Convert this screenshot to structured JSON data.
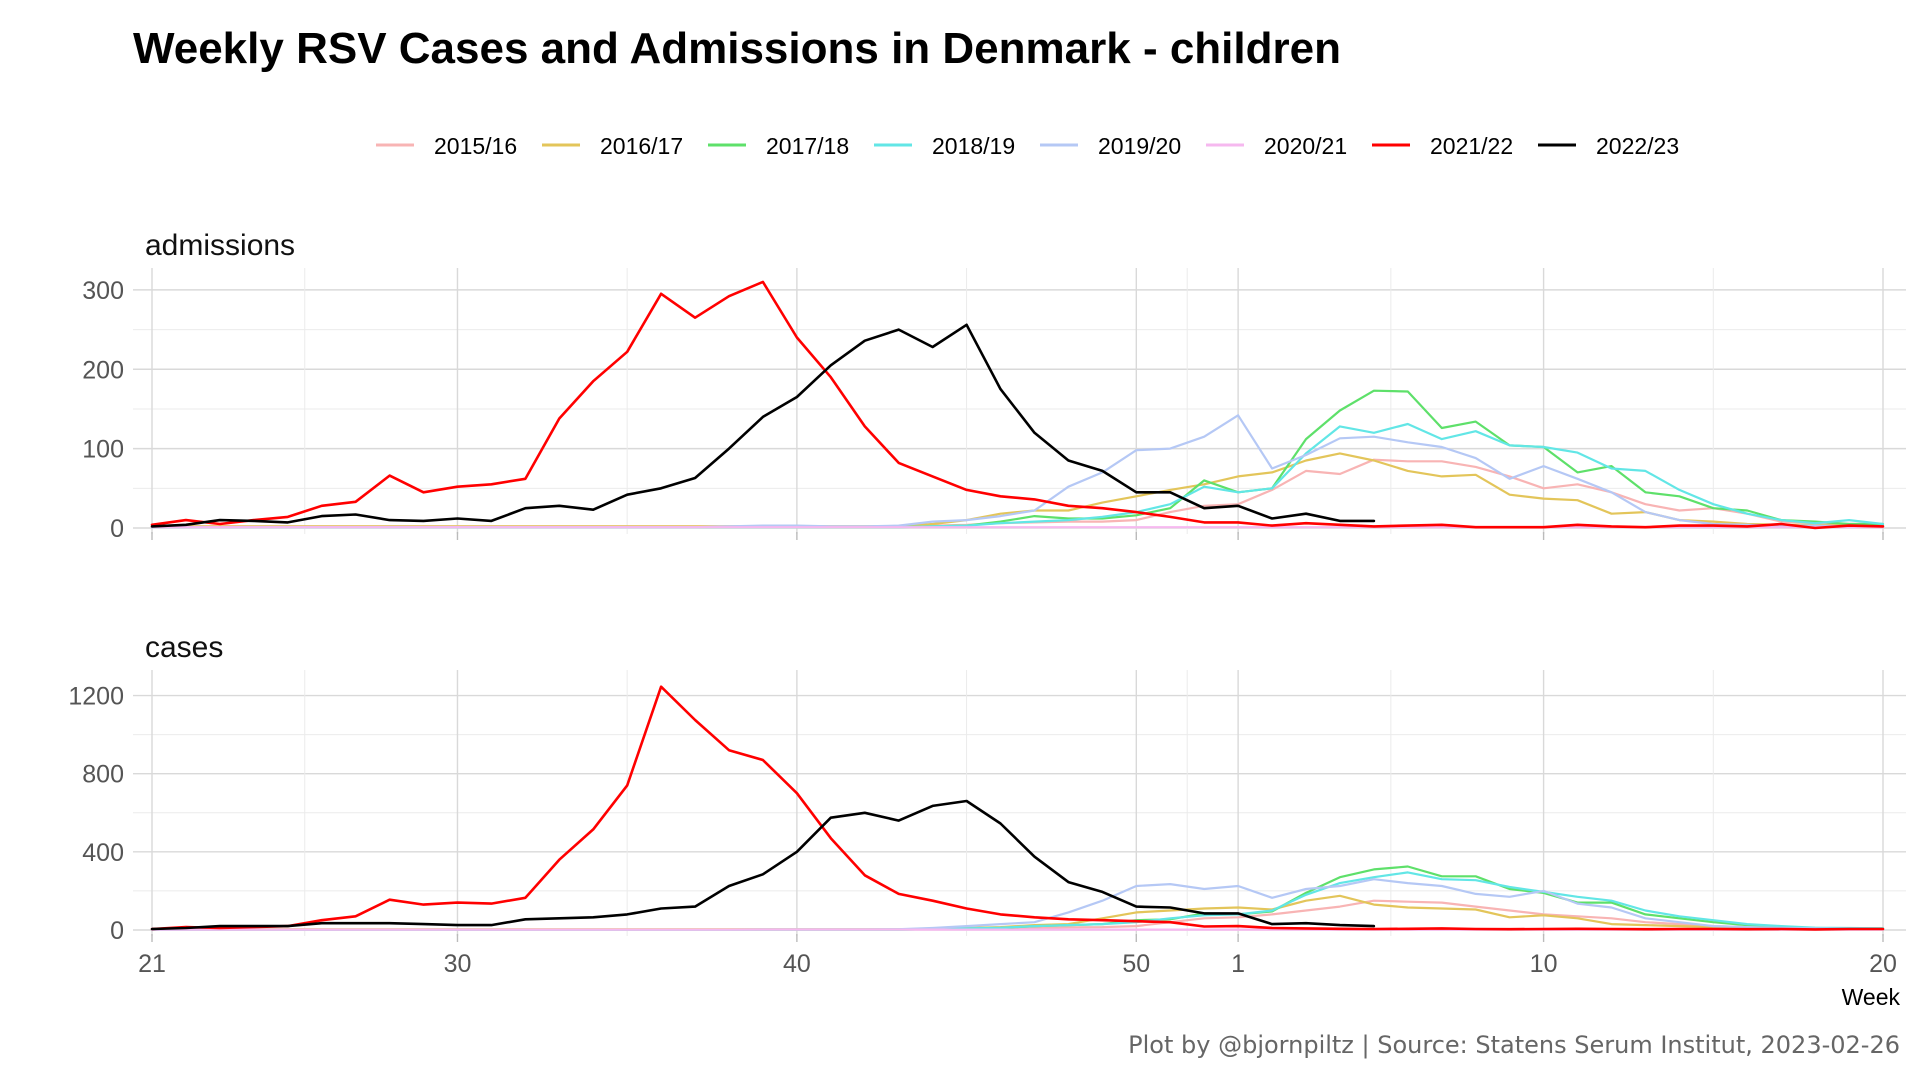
{
  "chart_data": {
    "type": "line",
    "title": "Weekly RSV Cases and Admissions in Denmark - children",
    "xlabel": "Week",
    "caption": "Plot by @bjornpiltz | Source: Statens Serum Institut, 2023-02-26",
    "legend_position": "top",
    "grid": true,
    "weeks": [
      21,
      22,
      23,
      24,
      25,
      26,
      27,
      28,
      29,
      30,
      31,
      32,
      33,
      34,
      35,
      36,
      37,
      38,
      39,
      40,
      41,
      42,
      43,
      44,
      45,
      46,
      47,
      48,
      49,
      50,
      51,
      52,
      1,
      2,
      3,
      4,
      5,
      6,
      7,
      8,
      9,
      10,
      11,
      12,
      13,
      14,
      15,
      16,
      17,
      18,
      19,
      20
    ],
    "x_ticks": [
      {
        "label": "21",
        "index": 0
      },
      {
        "label": "30",
        "index": 9
      },
      {
        "label": "40",
        "index": 19
      },
      {
        "label": "50",
        "index": 29
      },
      {
        "label": "1",
        "index": 32
      },
      {
        "label": "10",
        "index": 41
      },
      {
        "label": "20",
        "index": 51
      }
    ],
    "colors": {
      "2015/16": "#f8b4b4",
      "2016/17": "#e3c55a",
      "2017/18": "#5ee06a",
      "2018/19": "#62e6e6",
      "2019/20": "#b5c8f5",
      "2020/21": "#f6b8ef",
      "2021/22": "#ff0000",
      "2022/23": "#000000"
    },
    "legend": [
      "2015/16",
      "2016/17",
      "2017/18",
      "2018/19",
      "2019/20",
      "2020/21",
      "2021/22",
      "2022/23"
    ],
    "panels": [
      {
        "label": "admissions",
        "ylim": [
          0,
          320
        ],
        "yticks": [
          0,
          100,
          200,
          300
        ],
        "series": [
          {
            "name": "2015/16",
            "values": [
              2,
              2,
              2,
              2,
              2,
              2,
              2,
              2,
              2,
              2,
              2,
              2,
              2,
              2,
              2,
              2,
              2,
              2,
              2,
              2,
              2,
              2,
              2,
              3,
              4,
              6,
              7,
              8,
              8,
              10,
              20,
              28,
              30,
              48,
              72,
              68,
              86,
              84,
              84,
              77,
              65,
              50,
              55,
              45,
              30,
              22,
              25,
              18,
              8,
              6,
              5,
              5
            ]
          },
          {
            "name": "2016/17",
            "values": [
              2,
              2,
              2,
              2,
              2,
              2,
              2,
              2,
              2,
              2,
              2,
              2,
              2,
              2,
              2,
              2,
              2,
              2,
              2,
              2,
              2,
              2,
              2,
              5,
              10,
              18,
              22,
              22,
              32,
              40,
              48,
              55,
              65,
              70,
              85,
              94,
              85,
              72,
              65,
              67,
              42,
              37,
              35,
              18,
              20,
              10,
              8,
              5,
              4,
              4,
              3,
              3
            ]
          },
          {
            "name": "2017/18",
            "values": [
              1,
              1,
              1,
              1,
              1,
              1,
              1,
              1,
              1,
              1,
              1,
              1,
              1,
              1,
              1,
              1,
              1,
              1,
              1,
              1,
              1,
              1,
              1,
              2,
              3,
              8,
              15,
              12,
              12,
              16,
              25,
              60,
              45,
              50,
              112,
              148,
              173,
              172,
              126,
              134,
              104,
              102,
              70,
              78,
              45,
              40,
              25,
              22,
              10,
              8,
              5,
              5
            ]
          },
          {
            "name": "2018/19",
            "values": [
              1,
              1,
              1,
              1,
              1,
              1,
              1,
              1,
              1,
              1,
              1,
              1,
              1,
              1,
              1,
              1,
              1,
              1,
              1,
              1,
              1,
              1,
              1,
              2,
              3,
              6,
              8,
              10,
              14,
              20,
              30,
              52,
              45,
              50,
              94,
              128,
              120,
              131,
              112,
              122,
              104,
              102,
              95,
              75,
              72,
              48,
              30,
              18,
              10,
              6,
              10,
              5
            ]
          },
          {
            "name": "2019/20",
            "values": [
              1,
              1,
              1,
              1,
              1,
              1,
              1,
              1,
              1,
              1,
              1,
              1,
              1,
              1,
              1,
              1,
              1,
              2,
              3,
              3,
              2,
              2,
              3,
              8,
              10,
              15,
              22,
              52,
              70,
              98,
              100,
              115,
              142,
              75,
              92,
              113,
              115,
              108,
              102,
              88,
              62,
              78,
              62,
              45,
              20,
              10,
              5,
              4,
              3,
              3,
              2,
              2
            ]
          },
          {
            "name": "2020/21",
            "values": [
              1,
              1,
              1,
              1,
              1,
              1,
              1,
              1,
              1,
              1,
              1,
              1,
              1,
              1,
              1,
              1,
              1,
              1,
              1,
              1,
              1,
              1,
              1,
              1,
              1,
              1,
              1,
              1,
              1,
              1,
              1,
              1,
              1,
              1,
              1,
              1,
              1,
              1,
              1,
              1,
              1,
              1,
              1,
              1,
              1,
              1,
              1,
              1,
              1,
              1,
              1,
              1
            ]
          },
          {
            "name": "2021/22",
            "values": [
              4,
              10,
              5,
              10,
              14,
              28,
              33,
              66,
              45,
              52,
              55,
              62,
              138,
              185,
              222,
              295,
              265,
              292,
              310,
              240,
              190,
              128,
              82,
              65,
              48,
              40,
              36,
              28,
              25,
              20,
              14,
              7,
              7,
              3,
              6,
              4,
              2,
              3,
              4,
              1,
              1,
              1,
              4,
              2,
              1,
              3,
              3,
              2,
              5,
              0,
              3,
              2
            ]
          },
          {
            "name": "2022/23",
            "values": [
              2,
              4,
              10,
              9,
              7,
              15,
              17,
              10,
              9,
              12,
              9,
              25,
              28,
              23,
              42,
              50,
              63,
              100,
              140,
              165,
              205,
              236,
              250,
              228,
              256,
              175,
              120,
              85,
              72,
              45,
              45,
              25,
              28,
              12,
              18,
              9,
              9
            ]
          }
        ]
      },
      {
        "label": "cases",
        "ylim": [
          0,
          1300
        ],
        "yticks": [
          0,
          400,
          800,
          1200
        ],
        "series": [
          {
            "name": "2015/16",
            "values": [
              3,
              3,
              3,
              3,
              3,
              3,
              3,
              3,
              3,
              3,
              3,
              3,
              3,
              3,
              3,
              3,
              3,
              3,
              3,
              3,
              3,
              3,
              3,
              5,
              8,
              10,
              12,
              14,
              15,
              20,
              40,
              60,
              65,
              80,
              100,
              120,
              150,
              145,
              140,
              120,
              100,
              80,
              70,
              60,
              40,
              30,
              20,
              15,
              10,
              8,
              6,
              5
            ]
          },
          {
            "name": "2016/17",
            "values": [
              3,
              3,
              3,
              3,
              3,
              3,
              3,
              3,
              3,
              3,
              3,
              3,
              3,
              3,
              3,
              3,
              3,
              3,
              3,
              3,
              3,
              3,
              3,
              5,
              10,
              15,
              25,
              30,
              60,
              90,
              100,
              110,
              115,
              105,
              150,
              175,
              130,
              115,
              110,
              105,
              65,
              75,
              60,
              30,
              25,
              20,
              15,
              12,
              10,
              8,
              6,
              5
            ]
          },
          {
            "name": "2017/18",
            "values": [
              2,
              2,
              2,
              2,
              2,
              2,
              2,
              2,
              2,
              2,
              2,
              2,
              2,
              2,
              2,
              2,
              2,
              2,
              2,
              2,
              2,
              2,
              2,
              4,
              6,
              10,
              20,
              25,
              30,
              50,
              55,
              85,
              80,
              95,
              190,
              270,
              310,
              325,
              275,
              275,
              210,
              190,
              140,
              140,
              80,
              60,
              40,
              25,
              15,
              10,
              8,
              8
            ]
          },
          {
            "name": "2018/19",
            "values": [
              2,
              2,
              2,
              2,
              2,
              2,
              2,
              2,
              2,
              2,
              2,
              2,
              2,
              2,
              2,
              2,
              2,
              2,
              2,
              2,
              2,
              2,
              2,
              4,
              8,
              12,
              20,
              25,
              30,
              40,
              60,
              75,
              80,
              100,
              180,
              240,
              270,
              295,
              260,
              255,
              220,
              195,
              170,
              150,
              100,
              70,
              50,
              30,
              20,
              12,
              10,
              8
            ]
          },
          {
            "name": "2019/20",
            "values": [
              2,
              2,
              2,
              2,
              2,
              2,
              2,
              2,
              2,
              2,
              2,
              2,
              2,
              2,
              2,
              2,
              2,
              2,
              3,
              3,
              3,
              3,
              4,
              10,
              20,
              30,
              40,
              90,
              150,
              225,
              235,
              210,
              225,
              165,
              210,
              225,
              260,
              240,
              225,
              185,
              170,
              200,
              135,
              115,
              60,
              40,
              20,
              15,
              10,
              8,
              6,
              5
            ]
          },
          {
            "name": "2020/21",
            "values": [
              2,
              2,
              2,
              2,
              2,
              2,
              2,
              2,
              2,
              2,
              2,
              2,
              2,
              2,
              2,
              2,
              2,
              2,
              2,
              2,
              2,
              2,
              2,
              2,
              2,
              2,
              2,
              2,
              2,
              2,
              2,
              2,
              2,
              2,
              2,
              2,
              2,
              2,
              2,
              2,
              2,
              2,
              2,
              2,
              2,
              2,
              2,
              2,
              2,
              2,
              2,
              2
            ]
          },
          {
            "name": "2021/22",
            "values": [
              5,
              15,
              10,
              15,
              20,
              50,
              70,
              155,
              130,
              140,
              135,
              165,
              360,
              515,
              740,
              1245,
              1075,
              920,
              870,
              700,
              470,
              280,
              185,
              150,
              110,
              80,
              65,
              55,
              50,
              45,
              40,
              18,
              20,
              10,
              8,
              6,
              5,
              6,
              8,
              5,
              4,
              5,
              6,
              5,
              4,
              5,
              5,
              4,
              5,
              3,
              5,
              5
            ]
          },
          {
            "name": "2022/23",
            "values": [
              5,
              10,
              20,
              20,
              20,
              35,
              35,
              35,
              30,
              25,
              25,
              55,
              60,
              65,
              80,
              110,
              120,
              225,
              285,
              400,
              575,
              600,
              560,
              635,
              660,
              545,
              375,
              245,
              195,
              120,
              115,
              85,
              85,
              30,
              35,
              25,
              20
            ]
          }
        ]
      }
    ]
  }
}
